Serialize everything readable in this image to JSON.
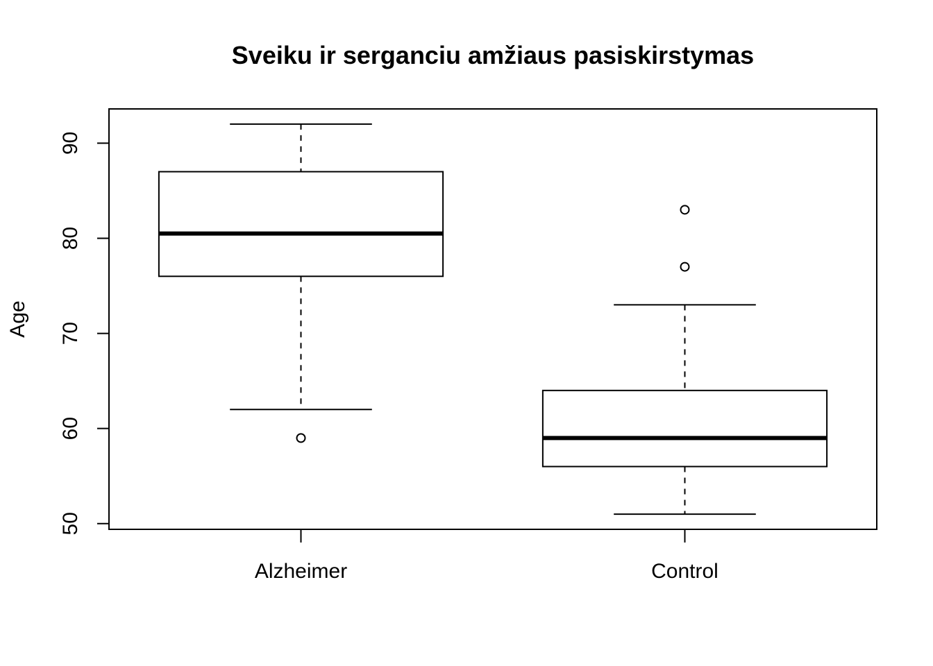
{
  "chart_data": {
    "type": "boxplot",
    "title": "Sveiku ir serganciu amžiaus pasiskirstymas",
    "xlabel": "",
    "ylabel": "Age",
    "ylim": [
      49.4,
      93.6
    ],
    "yticks": [
      50,
      60,
      70,
      80,
      90
    ],
    "ytick_labels": [
      "50",
      "60",
      "70",
      "80",
      "90"
    ],
    "categories": [
      "Alzheimer",
      "Control"
    ],
    "boxes": [
      {
        "category": "Alzheimer",
        "whisker_low": 62,
        "q1": 76,
        "median": 80.5,
        "q3": 87,
        "whisker_high": 92,
        "outliers": [
          59
        ]
      },
      {
        "category": "Control",
        "whisker_low": 51,
        "q1": 56,
        "median": 59,
        "q3": 64,
        "whisker_high": 73,
        "outliers": [
          77,
          83
        ]
      }
    ],
    "grid": false,
    "colors": {
      "stroke": "#000000",
      "box_fill": "#ffffff"
    }
  }
}
